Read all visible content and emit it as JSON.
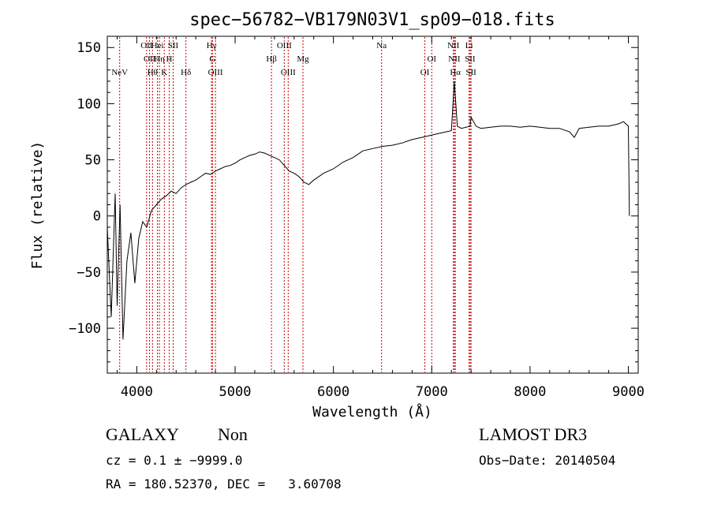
{
  "chart_data": {
    "type": "line",
    "title": "spec−56782−VB179N03V1_sp09−018.fits",
    "xlabel": "Wavelength (Å)",
    "ylabel": "Flux (relative)",
    "xlim": [
      3700,
      9100
    ],
    "ylim": [
      -140,
      160
    ],
    "xticks": [
      4000,
      5000,
      6000,
      7000,
      8000,
      9000
    ],
    "xtick_labels": [
      "4000",
      "5000",
      "6000",
      "7000",
      "8000",
      "9000"
    ],
    "yticks": [
      -100,
      -50,
      0,
      50,
      100,
      150
    ],
    "ytick_labels": [
      "−100",
      "−50",
      "0",
      "50",
      "100",
      "150"
    ],
    "grid": false,
    "line_color": "#000000",
    "marker_color": "#cc0000",
    "spectrum": {
      "x": [
        3700,
        3740,
        3780,
        3800,
        3830,
        3860,
        3900,
        3940,
        3980,
        4020,
        4060,
        4100,
        4150,
        4200,
        4250,
        4300,
        4350,
        4400,
        4450,
        4500,
        4550,
        4600,
        4650,
        4700,
        4750,
        4800,
        4850,
        4900,
        4950,
        5000,
        5050,
        5100,
        5150,
        5200,
        5250,
        5300,
        5350,
        5400,
        5450,
        5500,
        5550,
        5600,
        5650,
        5700,
        5750,
        5800,
        5850,
        5900,
        5950,
        6000,
        6100,
        6200,
        6300,
        6400,
        6500,
        6600,
        6700,
        6800,
        6900,
        7000,
        7100,
        7150,
        7200,
        7230,
        7260,
        7300,
        7350,
        7390,
        7400,
        7450,
        7500,
        7600,
        7700,
        7800,
        7900,
        8000,
        8100,
        8200,
        8300,
        8400,
        8450,
        8500,
        8600,
        8700,
        8800,
        8900,
        8950,
        9000,
        9010
      ],
      "y": [
        -10,
        -90,
        20,
        -80,
        10,
        -110,
        -40,
        -15,
        -60,
        -20,
        -5,
        -10,
        5,
        10,
        15,
        18,
        22,
        20,
        25,
        28,
        30,
        32,
        35,
        38,
        37,
        40,
        42,
        44,
        45,
        47,
        50,
        52,
        54,
        55,
        57,
        56,
        54,
        52,
        50,
        45,
        40,
        38,
        35,
        30,
        28,
        32,
        35,
        38,
        40,
        42,
        48,
        52,
        58,
        60,
        62,
        63,
        65,
        68,
        70,
        72,
        74,
        75,
        76,
        120,
        80,
        78,
        79,
        80,
        88,
        80,
        78,
        79,
        80,
        80,
        79,
        80,
        79,
        78,
        78,
        75,
        70,
        78,
        79,
        80,
        80,
        82,
        84,
        80,
        0
      ]
    },
    "lines": [
      {
        "label": "NeV",
        "wl": 3826,
        "tier": 2
      },
      {
        "label": "OII",
        "wl": 4100,
        "tier": 0
      },
      {
        "label": "OII",
        "wl": 4130,
        "tier": 1
      },
      {
        "label": "Hθ",
        "wl": 4160,
        "tier": 2
      },
      {
        "label": "Hei",
        "wl": 4210,
        "tier": 0
      },
      {
        "label": "Hη",
        "wl": 4230,
        "tier": 1
      },
      {
        "label": "K",
        "wl": 4280,
        "tier": 2
      },
      {
        "label": "H",
        "wl": 4330,
        "tier": 1
      },
      {
        "label": "SII",
        "wl": 4370,
        "tier": 0
      },
      {
        "label": "Hδ",
        "wl": 4500,
        "tier": 2
      },
      {
        "label": "Hγ",
        "wl": 4760,
        "tier": 0
      },
      {
        "label": "G",
        "wl": 4770,
        "tier": 1
      },
      {
        "label": "OIII",
        "wl": 4800,
        "tier": 2
      },
      {
        "label": "OIII",
        "wl": 5500,
        "tier": 0
      },
      {
        "label": "Hβ",
        "wl": 5370,
        "tier": 1
      },
      {
        "label": "OIII",
        "wl": 5540,
        "tier": 2
      },
      {
        "label": "Mg",
        "wl": 5690,
        "tier": 1
      },
      {
        "label": "Na",
        "wl": 6490,
        "tier": 0
      },
      {
        "label": "OI",
        "wl": 7000,
        "tier": 1
      },
      {
        "label": "OI",
        "wl": 6930,
        "tier": 2
      },
      {
        "label": "NII",
        "wl": 7220,
        "tier": 0
      },
      {
        "label": "NII",
        "wl": 7230,
        "tier": 1
      },
      {
        "label": "Hα",
        "wl": 7240,
        "tier": 2
      },
      {
        "label": "Li",
        "wl": 7380,
        "tier": 0
      },
      {
        "label": "SII",
        "wl": 7390,
        "tier": 1
      },
      {
        "label": "SII",
        "wl": 7400,
        "tier": 2
      }
    ]
  },
  "info": {
    "class": "GALAXY",
    "subclass": "Non",
    "survey": "LAMOST DR3",
    "cz": "cz = 0.1 ± −9999.0",
    "obsdate": "Obs−Date: 20140504",
    "radec": "RA = 180.52370, DEC =   3.60708"
  }
}
